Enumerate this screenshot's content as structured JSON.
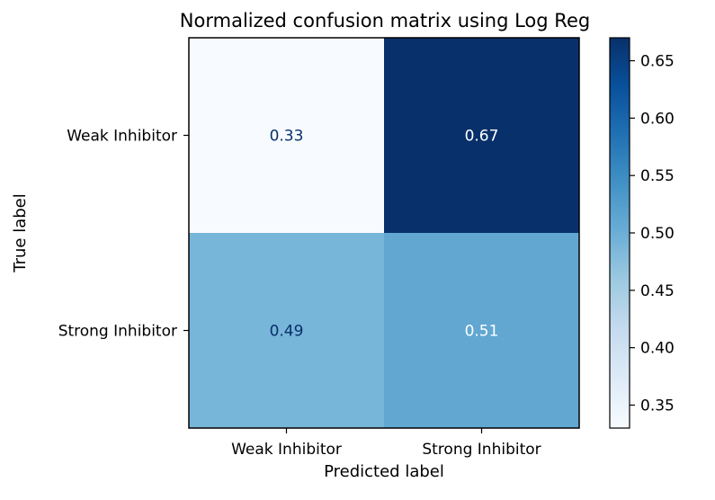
{
  "chart_data": {
    "type": "heatmap",
    "title": "Normalized confusion matrix using Log Reg",
    "xlabel": "Predicted label",
    "ylabel": "True label",
    "x_categories": [
      "Weak Inhibitor",
      "Strong Inhibitor"
    ],
    "y_categories": [
      "Weak Inhibitor",
      "Strong Inhibitor"
    ],
    "values": [
      [
        0.33,
        0.67
      ],
      [
        0.49,
        0.51
      ]
    ],
    "value_labels": [
      [
        "0.33",
        "0.67"
      ],
      [
        "0.49",
        "0.51"
      ]
    ],
    "colormap": "Blues",
    "colorbar": {
      "range": [
        0.33,
        0.67
      ],
      "ticks": [
        0.35,
        0.4,
        0.45,
        0.5,
        0.55,
        0.6,
        0.65
      ],
      "tick_labels": [
        "0.35",
        "0.40",
        "0.45",
        "0.50",
        "0.55",
        "0.60",
        "0.65"
      ]
    }
  },
  "colors": {
    "light_text": "#ffffff",
    "dark_text": "#08306b",
    "axis": "#000000"
  }
}
